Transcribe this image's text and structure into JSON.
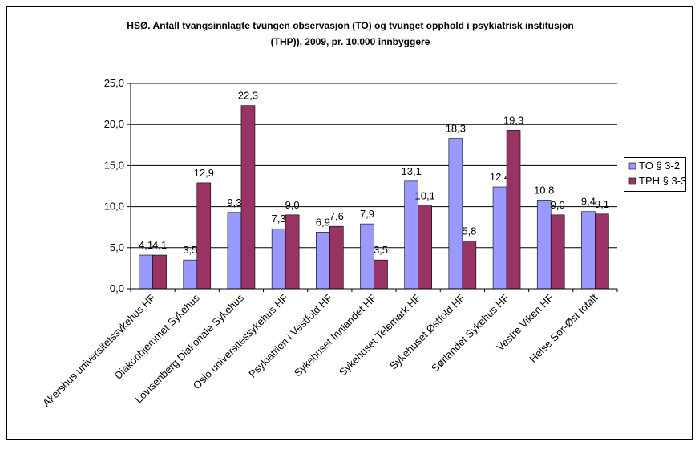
{
  "chart_data": {
    "type": "bar",
    "title": [
      "HSØ. Antall tvangsinnlagte tvungen observasjon (TO) og tvunget opphold i psykiatrisk institusjon",
      "(THP)), 2009, pr. 10.000 innbyggere"
    ],
    "categories": [
      "Akershus universitetssykehus HF",
      "Diakonhjemmet Sykehus",
      "Lovisenberg Diakonale Sykehus",
      "Oslo universitessykehus HF",
      "Psykiatrien i Vestfold HF",
      "Sykehuset Innlandet HF",
      "Sykehuset Telemark HF",
      "Sykehuset Østfold HF",
      "Sørlandet Sykehus HF",
      "Vestre Viken HF",
      "Helse Sør-Øst totalt"
    ],
    "series": [
      {
        "name": "TO § 3-2",
        "color": "#9999ff",
        "values": [
          4.1,
          3.5,
          9.3,
          7.3,
          6.9,
          7.9,
          13.1,
          18.3,
          12.4,
          10.8,
          9.4
        ],
        "value_labels": [
          "4,1",
          "3,5",
          "9,3",
          "7,3",
          "6,9",
          "7,9",
          "13,1",
          "18,3",
          "12,4",
          "10,8",
          "9,4"
        ]
      },
      {
        "name": "TPH § 3-3",
        "color": "#993366",
        "values": [
          4.1,
          12.9,
          22.3,
          9.0,
          7.6,
          3.5,
          10.1,
          5.8,
          19.3,
          9.0,
          9.1
        ],
        "value_labels": [
          "4,1",
          "12,9",
          "22,3",
          "9,0",
          "7,6",
          "3,5",
          "10,1",
          "5,8",
          "19,3",
          "9,0",
          "9,1"
        ]
      }
    ],
    "ylim": [
      0,
      25
    ],
    "yticks": [
      {
        "value": 0,
        "label": "0,0"
      },
      {
        "value": 5,
        "label": "5,0"
      },
      {
        "value": 10,
        "label": "10,0"
      },
      {
        "value": 15,
        "label": "15,0"
      },
      {
        "value": 20,
        "label": "20,0"
      },
      {
        "value": 25,
        "label": "25,0"
      }
    ],
    "grid": true,
    "legend": "right"
  }
}
